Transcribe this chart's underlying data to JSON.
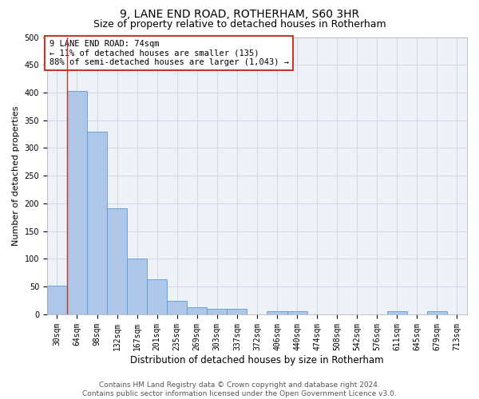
{
  "title": "9, LANE END ROAD, ROTHERHAM, S60 3HR",
  "subtitle": "Size of property relative to detached houses in Rotherham",
  "xlabel": "Distribution of detached houses by size in Rotherham",
  "ylabel": "Number of detached properties",
  "categories": [
    "30sqm",
    "64sqm",
    "98sqm",
    "132sqm",
    "167sqm",
    "201sqm",
    "235sqm",
    "269sqm",
    "303sqm",
    "337sqm",
    "372sqm",
    "406sqm",
    "440sqm",
    "474sqm",
    "508sqm",
    "542sqm",
    "576sqm",
    "611sqm",
    "645sqm",
    "679sqm",
    "713sqm"
  ],
  "values": [
    52,
    403,
    330,
    192,
    100,
    63,
    25,
    13,
    10,
    10,
    0,
    6,
    5,
    0,
    0,
    0,
    0,
    5,
    0,
    5,
    0
  ],
  "bar_color": "#aec6e8",
  "bar_edge_color": "#5b9bd5",
  "vline_color": "#c0392b",
  "vline_x_index": 1,
  "annotation_text": "9 LANE END ROAD: 74sqm\n← 11% of detached houses are smaller (135)\n88% of semi-detached houses are larger (1,043) →",
  "annotation_box_color": "#c0392b",
  "ylim": [
    0,
    500
  ],
  "yticks": [
    0,
    50,
    100,
    150,
    200,
    250,
    300,
    350,
    400,
    450,
    500
  ],
  "grid_color": "#ccd9e8",
  "background_color": "#eef2f7",
  "footer_line1": "Contains HM Land Registry data © Crown copyright and database right 2024.",
  "footer_line2": "Contains public sector information licensed under the Open Government Licence v3.0.",
  "title_fontsize": 10,
  "subtitle_fontsize": 9,
  "xlabel_fontsize": 8.5,
  "ylabel_fontsize": 8,
  "tick_fontsize": 7,
  "annotation_fontsize": 7.5,
  "footer_fontsize": 6.5
}
